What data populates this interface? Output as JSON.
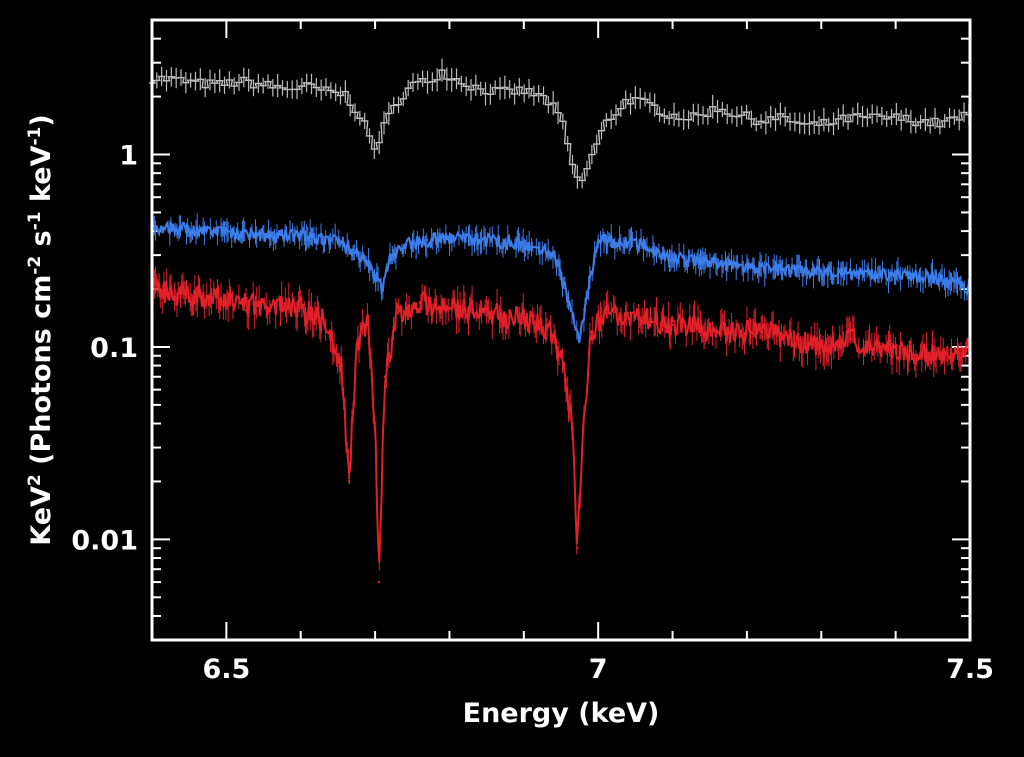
{
  "chart_data": {
    "type": "line",
    "xlabel": "Energy (keV)",
    "ylabel_parts": [
      "KeV",
      "2",
      " (Photons cm",
      "-2",
      " s",
      "-1",
      " keV",
      "-1",
      ")"
    ],
    "xlim": [
      6.4,
      7.5
    ],
    "ylim": [
      0.003,
      5
    ],
    "y_scale": "log",
    "x_ticks": [
      {
        "value": 6.5,
        "label": "6.5"
      },
      {
        "value": 7.0,
        "label": "7"
      },
      {
        "value": 7.5,
        "label": "7.5"
      }
    ],
    "y_ticks": [
      {
        "value": 1,
        "label": "1"
      },
      {
        "value": 0.1,
        "label": "0.1"
      },
      {
        "value": 0.01,
        "label": "0.01"
      }
    ],
    "colors": {
      "background": "#000000",
      "frame": "#ffffff",
      "grey": "#bdbdbd",
      "blue": "#3d7dea",
      "red": "#e2202a"
    },
    "series": [
      {
        "color": "grey",
        "style": "errorbar-step",
        "points": [
          [
            6.4,
            2.5
          ],
          [
            6.43,
            2.45
          ],
          [
            6.46,
            2.35
          ],
          [
            6.49,
            2.3
          ],
          [
            6.52,
            2.4
          ],
          [
            6.55,
            2.3
          ],
          [
            6.58,
            2.2
          ],
          [
            6.61,
            2.25
          ],
          [
            6.64,
            2.1
          ],
          [
            6.66,
            2.05
          ],
          [
            6.68,
            1.6
          ],
          [
            6.7,
            1.05
          ],
          [
            6.71,
            1.35
          ],
          [
            6.73,
            1.9
          ],
          [
            6.75,
            2.3
          ],
          [
            6.77,
            2.4
          ],
          [
            6.79,
            2.7
          ],
          [
            6.81,
            2.45
          ],
          [
            6.84,
            2.2
          ],
          [
            6.87,
            2.1
          ],
          [
            6.9,
            2.15
          ],
          [
            6.93,
            1.95
          ],
          [
            6.95,
            1.55
          ],
          [
            6.965,
            0.9
          ],
          [
            6.975,
            0.68
          ],
          [
            6.99,
            0.95
          ],
          [
            7.01,
            1.45
          ],
          [
            7.04,
            1.95
          ],
          [
            7.07,
            1.8
          ],
          [
            7.1,
            1.6
          ],
          [
            7.13,
            1.55
          ],
          [
            7.16,
            1.75
          ],
          [
            7.19,
            1.6
          ],
          [
            7.22,
            1.5
          ],
          [
            7.25,
            1.55
          ],
          [
            7.28,
            1.4
          ],
          [
            7.31,
            1.45
          ],
          [
            7.34,
            1.55
          ],
          [
            7.37,
            1.55
          ],
          [
            7.4,
            1.55
          ],
          [
            7.43,
            1.5
          ],
          [
            7.46,
            1.45
          ],
          [
            7.5,
            1.6
          ]
        ]
      },
      {
        "color": "blue",
        "style": "noisy-line",
        "points": [
          [
            6.4,
            0.42
          ],
          [
            6.44,
            0.41
          ],
          [
            6.48,
            0.4
          ],
          [
            6.52,
            0.39
          ],
          [
            6.56,
            0.38
          ],
          [
            6.6,
            0.38
          ],
          [
            6.64,
            0.36
          ],
          [
            6.67,
            0.32
          ],
          [
            6.69,
            0.28
          ],
          [
            6.71,
            0.2
          ],
          [
            6.72,
            0.29
          ],
          [
            6.74,
            0.34
          ],
          [
            6.77,
            0.36
          ],
          [
            6.8,
            0.37
          ],
          [
            6.84,
            0.36
          ],
          [
            6.88,
            0.35
          ],
          [
            6.92,
            0.33
          ],
          [
            6.94,
            0.3
          ],
          [
            6.96,
            0.18
          ],
          [
            6.975,
            0.11
          ],
          [
            6.985,
            0.18
          ],
          [
            7.0,
            0.36
          ],
          [
            7.03,
            0.35
          ],
          [
            7.06,
            0.34
          ],
          [
            7.09,
            0.3
          ],
          [
            7.12,
            0.28
          ],
          [
            7.16,
            0.27
          ],
          [
            7.2,
            0.26
          ],
          [
            7.25,
            0.25
          ],
          [
            7.3,
            0.245
          ],
          [
            7.35,
            0.24
          ],
          [
            7.4,
            0.235
          ],
          [
            7.45,
            0.23
          ],
          [
            7.5,
            0.2
          ]
        ]
      },
      {
        "color": "red",
        "style": "noisy-line",
        "points": [
          [
            6.4,
            0.2
          ],
          [
            6.44,
            0.19
          ],
          [
            6.48,
            0.18
          ],
          [
            6.52,
            0.17
          ],
          [
            6.56,
            0.165
          ],
          [
            6.6,
            0.16
          ],
          [
            6.63,
            0.14
          ],
          [
            6.655,
            0.08
          ],
          [
            6.665,
            0.02
          ],
          [
            6.675,
            0.1
          ],
          [
            6.69,
            0.14
          ],
          [
            6.7,
            0.04
          ],
          [
            6.705,
            0.006
          ],
          [
            6.713,
            0.07
          ],
          [
            6.73,
            0.15
          ],
          [
            6.76,
            0.17
          ],
          [
            6.79,
            0.16
          ],
          [
            6.82,
            0.155
          ],
          [
            6.86,
            0.15
          ],
          [
            6.9,
            0.14
          ],
          [
            6.93,
            0.13
          ],
          [
            6.95,
            0.09
          ],
          [
            6.965,
            0.04
          ],
          [
            6.972,
            0.009
          ],
          [
            6.98,
            0.04
          ],
          [
            6.99,
            0.12
          ],
          [
            7.01,
            0.15
          ],
          [
            7.04,
            0.15
          ],
          [
            7.07,
            0.14
          ],
          [
            7.1,
            0.13
          ],
          [
            7.14,
            0.125
          ],
          [
            7.18,
            0.12
          ],
          [
            7.22,
            0.12
          ],
          [
            7.26,
            0.11
          ],
          [
            7.3,
            0.1
          ],
          [
            7.34,
            0.11
          ],
          [
            7.38,
            0.1
          ],
          [
            7.42,
            0.095
          ],
          [
            7.46,
            0.09
          ],
          [
            7.5,
            0.1
          ]
        ]
      }
    ]
  }
}
